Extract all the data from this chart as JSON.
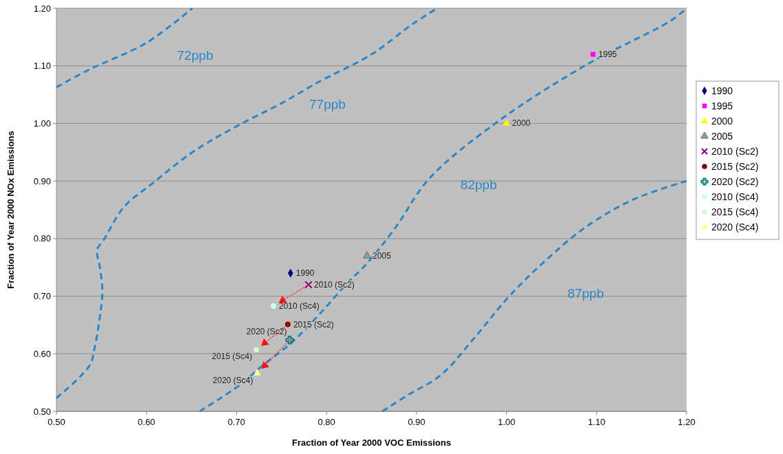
{
  "chart_data": {
    "type": "scatter",
    "xlabel": "Fraction of Year 2000 VOC Emissions",
    "ylabel": "Fraction of Year 2000 NOx Emissions",
    "xlim": [
      0.5,
      1.2
    ],
    "xticks": [
      {
        "value": 0.5,
        "label": "0.50"
      },
      {
        "value": 0.6,
        "label": "0.60"
      },
      {
        "value": 0.7,
        "label": "0.70"
      },
      {
        "value": 0.8,
        "label": "0.80"
      },
      {
        "value": 0.9,
        "label": "0.90"
      },
      {
        "value": 1.0,
        "label": "1.00"
      },
      {
        "value": 1.1,
        "label": "1.10"
      },
      {
        "value": 1.2,
        "label": "1.20"
      }
    ],
    "ylim": [
      0.5,
      1.2
    ],
    "yticks": [
      {
        "value": 0.5,
        "label": "0.50"
      },
      {
        "value": 0.6,
        "label": "0.60"
      },
      {
        "value": 0.7,
        "label": "0.70"
      },
      {
        "value": 0.8,
        "label": "0.80"
      },
      {
        "value": 0.9,
        "label": "0.90"
      },
      {
        "value": 1.0,
        "label": "1.00"
      },
      {
        "value": 1.1,
        "label": "1.10"
      },
      {
        "value": 1.2,
        "label": "1.20"
      }
    ],
    "grid": "y",
    "legend": "right",
    "series": [
      {
        "name": "1990",
        "color": "#000080",
        "marker": "diamond",
        "x": [
          0.76
        ],
        "values": [
          0.74
        ]
      },
      {
        "name": "1995",
        "color": "#ff00ff",
        "marker": "square",
        "x": [
          1.096
        ],
        "values": [
          1.12
        ]
      },
      {
        "name": "2000",
        "color": "#ffff00",
        "marker": "triangle",
        "x": [
          1.0
        ],
        "values": [
          1.0
        ]
      },
      {
        "name": "2005",
        "color": "#33cccc",
        "marker": "triangle",
        "x": [
          0.845
        ],
        "values": [
          0.77
        ]
      },
      {
        "name": "2010 (Sc2)",
        "color": "#800080",
        "marker": "cross",
        "x": [
          0.78
        ],
        "values": [
          0.72
        ]
      },
      {
        "name": "2015 (Sc2)",
        "color": "#800000",
        "marker": "circle",
        "x": [
          0.757
        ],
        "values": [
          0.651
        ]
      },
      {
        "name": "2020 (Sc2)",
        "color": "#008080",
        "marker": "plus",
        "x": [
          0.759
        ],
        "values": [
          0.624
        ]
      },
      {
        "name": "2010 (Sc4)",
        "color": "#ccffff",
        "marker": "circle",
        "x": [
          0.741
        ],
        "values": [
          0.683
        ]
      },
      {
        "name": "2015 (Sc4)",
        "color": "#ccffcc",
        "marker": "square",
        "x": [
          0.722
        ],
        "values": [
          0.607
        ]
      },
      {
        "name": "2020 (Sc4)",
        "color": "#ffff99",
        "marker": "triangle",
        "x": [
          0.723
        ],
        "values": [
          0.566
        ]
      },
      {
        "type": "line",
        "name": "72ppb",
        "color": "#2a86c9",
        "line_style": "dashed",
        "x": [
          0.5,
          0.537,
          0.6,
          0.651
        ],
        "values": [
          1.063,
          1.094,
          1.14,
          1.2
        ]
      },
      {
        "type": "line",
        "name": "77ppb",
        "color": "#2a86c9",
        "line_style": "dashed",
        "x": [
          0.5,
          0.537,
          0.542,
          0.548,
          0.551,
          0.548,
          0.545,
          0.553,
          0.575,
          0.606,
          0.651,
          0.7,
          0.75,
          0.79,
          0.85,
          0.896,
          0.923
        ],
        "values": [
          0.523,
          0.58,
          0.607,
          0.662,
          0.708,
          0.753,
          0.78,
          0.799,
          0.855,
          0.895,
          0.95,
          0.995,
          1.035,
          1.071,
          1.12,
          1.173,
          1.2
        ]
      },
      {
        "type": "line",
        "name": "82ppb",
        "color": "#2a86c9",
        "line_style": "dashed",
        "x": [
          0.659,
          0.703,
          0.73,
          0.761,
          0.797,
          0.822,
          0.845,
          0.877,
          0.914,
          0.99,
          1.09,
          1.182,
          1.2
        ],
        "values": [
          0.5,
          0.545,
          0.581,
          0.619,
          0.677,
          0.721,
          0.757,
          0.82,
          0.904,
          1.003,
          1.103,
          1.178,
          1.2
        ]
      },
      {
        "type": "line",
        "name": "87ppb",
        "color": "#2a86c9",
        "line_style": "dashed",
        "x": [
          0.862,
          0.889,
          0.927,
          0.965,
          1.003,
          1.042,
          1.088,
          1.141,
          1.2
        ],
        "values": [
          0.5,
          0.527,
          0.563,
          0.629,
          0.7,
          0.76,
          0.82,
          0.868,
          0.9
        ]
      }
    ]
  }
}
